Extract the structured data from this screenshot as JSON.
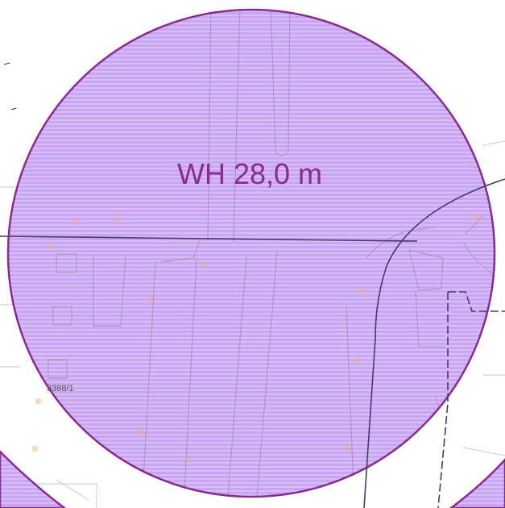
{
  "map": {
    "zone_label": "WH 28,0 m",
    "parcel_label": "3388/1",
    "colors": {
      "zone_fill": "#c9a6f2",
      "zone_hatch": "#ffffff",
      "zone_stroke": "#8a2b8f",
      "label_color": "#8a2b8f",
      "boundary_line": "#4a3a6a",
      "building_outline": "#a090b0",
      "background": "#ffffff",
      "road_outline": "#c8c8c8",
      "parcel_label_color": "#555555"
    }
  }
}
